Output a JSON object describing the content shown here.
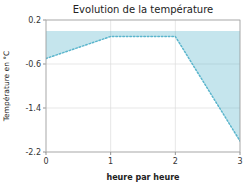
{
  "chart_data": {
    "type": "area",
    "title": "Evolution de la température",
    "xlabel": "heure par heure",
    "ylabel": "Température en °C",
    "x": [
      0,
      1,
      2,
      3
    ],
    "values": [
      -0.5,
      -0.1,
      -0.1,
      -2.0
    ],
    "color": "#5ab5cc",
    "line_style": "dotted",
    "xlim": [
      0,
      3
    ],
    "ylim": [
      -2.2,
      0.2
    ],
    "xticks": [
      0,
      1,
      2,
      3
    ],
    "yticks": [
      0.2,
      -0.6,
      -1.4,
      -2.2
    ],
    "grid": true
  }
}
